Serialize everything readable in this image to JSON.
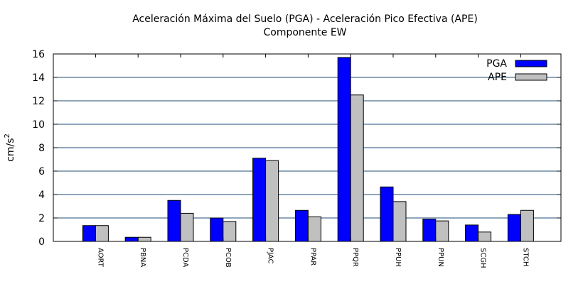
{
  "chart_data": {
    "type": "bar",
    "title": "Aceleración Máxima del Suelo (PGA) -  Aceleración Pico Efectiva (APE)",
    "subtitle": "Componente EW",
    "xlabel": "",
    "ylabel": "cm/s",
    "ylabel_superscript": "2",
    "ylim": [
      0,
      16
    ],
    "yticks": [
      0,
      2,
      4,
      6,
      8,
      10,
      12,
      14,
      16
    ],
    "grid": true,
    "legend_position": "top-right",
    "categories": [
      "AORT",
      "PBNA",
      "PCDA",
      "PCOB",
      "PJAC",
      "PPAR",
      "PPQR",
      "PPUH",
      "PPUN",
      "SCGH",
      "STCH"
    ],
    "series": [
      {
        "name": "PGA",
        "color": "#0000ff",
        "values": [
          1.35,
          0.35,
          3.5,
          2.0,
          7.1,
          2.65,
          15.7,
          4.65,
          1.9,
          1.4,
          2.3
        ]
      },
      {
        "name": "APE",
        "color": "#c0c0c0",
        "values": [
          1.35,
          0.35,
          2.4,
          1.7,
          6.9,
          2.1,
          12.5,
          3.4,
          1.75,
          0.8,
          2.65
        ]
      }
    ]
  }
}
